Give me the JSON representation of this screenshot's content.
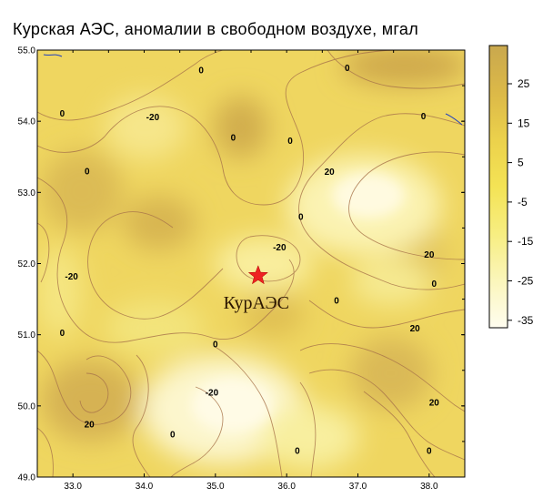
{
  "title": "Курская АЭС, аномалии в свободном воздухе, мгал",
  "map": {
    "x_ticks": [
      "33.0",
      "34.0",
      "35.0",
      "36.0",
      "37.0",
      "38.0"
    ],
    "y_ticks": [
      "55.0",
      "54.0",
      "53.0",
      "52.0",
      "51.0",
      "50.0",
      "49.0"
    ],
    "x_range": [
      32.5,
      38.5
    ],
    "y_range": [
      49.0,
      55.0
    ],
    "site": {
      "label": "КурАЭС",
      "lon": 35.6,
      "lat": 51.83,
      "marker": "star-icon",
      "color": "#ee2222"
    },
    "contour_labels": [
      {
        "text": "0",
        "lon": 34.8,
        "lat": 54.72
      },
      {
        "text": "0",
        "lon": 36.85,
        "lat": 54.75
      },
      {
        "text": "0",
        "lon": 32.85,
        "lat": 54.11
      },
      {
        "text": "-20",
        "lon": 34.12,
        "lat": 54.06
      },
      {
        "text": "0",
        "lon": 35.25,
        "lat": 53.77
      },
      {
        "text": "0",
        "lon": 36.05,
        "lat": 53.73
      },
      {
        "text": "0",
        "lon": 37.92,
        "lat": 54.07
      },
      {
        "text": "0",
        "lon": 33.2,
        "lat": 53.3
      },
      {
        "text": "20",
        "lon": 36.6,
        "lat": 53.29
      },
      {
        "text": "0",
        "lon": 36.2,
        "lat": 52.66
      },
      {
        "text": "-20",
        "lon": 35.9,
        "lat": 52.23
      },
      {
        "text": "20",
        "lon": 38.0,
        "lat": 52.13
      },
      {
        "text": "-20",
        "lon": 32.98,
        "lat": 51.82
      },
      {
        "text": "0",
        "lon": 38.07,
        "lat": 51.72
      },
      {
        "text": "0",
        "lon": 36.7,
        "lat": 51.48
      },
      {
        "text": "0",
        "lon": 32.85,
        "lat": 51.03
      },
      {
        "text": "0",
        "lon": 35.0,
        "lat": 50.87
      },
      {
        "text": "20",
        "lon": 37.8,
        "lat": 51.09
      },
      {
        "text": "-20",
        "lon": 34.95,
        "lat": 50.19
      },
      {
        "text": "20",
        "lon": 38.07,
        "lat": 50.05
      },
      {
        "text": "20",
        "lon": 33.23,
        "lat": 49.74
      },
      {
        "text": "0",
        "lon": 34.4,
        "lat": 49.6
      },
      {
        "text": "0",
        "lon": 36.15,
        "lat": 49.37
      },
      {
        "text": "0",
        "lon": 38.0,
        "lat": 49.37
      }
    ]
  },
  "colorbar": {
    "ticks": [
      "25",
      "15",
      "5",
      "-5",
      "-15",
      "-25",
      "-35"
    ],
    "colors": [
      "#c9a84e",
      "#dcb948",
      "#ecd24c",
      "#f4e355",
      "#f7ee82",
      "#fbf6bd",
      "#fffdf0"
    ]
  },
  "colors": {
    "contour": "#a8744a",
    "axis": "#000000",
    "boundary_blue": "#2040c0"
  }
}
